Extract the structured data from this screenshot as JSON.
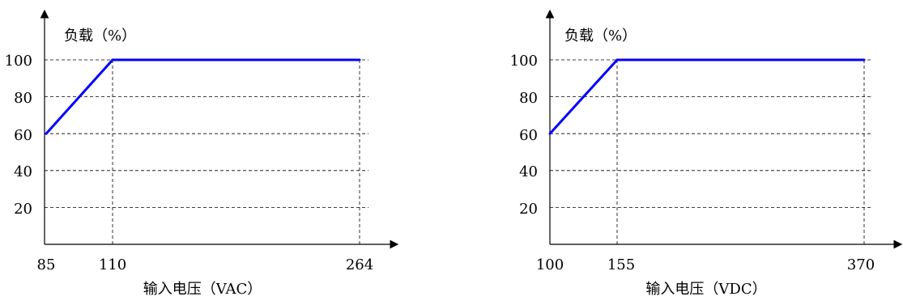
{
  "chart_data": [
    {
      "type": "line",
      "ylabel": "负载（%）",
      "xlabel": "输入电压（VAC）",
      "x_ticks": [
        "85",
        "110",
        "264"
      ],
      "y_ticks": [
        "20",
        "40",
        "60",
        "80",
        "100"
      ],
      "series": [
        {
          "x": [
            85,
            110,
            264
          ],
          "y": [
            60,
            100,
            100
          ],
          "color": "#0000ff"
        }
      ],
      "grid": "dashed"
    },
    {
      "type": "line",
      "ylabel": "负载（%）",
      "xlabel": "输入电压（VDC）",
      "x_ticks": [
        "100",
        "155",
        "370"
      ],
      "y_ticks": [
        "20",
        "40",
        "60",
        "80",
        "100"
      ],
      "series": [
        {
          "x": [
            100,
            155,
            370
          ],
          "y": [
            60,
            100,
            100
          ],
          "color": "#0000ff"
        }
      ],
      "grid": "dashed"
    }
  ]
}
